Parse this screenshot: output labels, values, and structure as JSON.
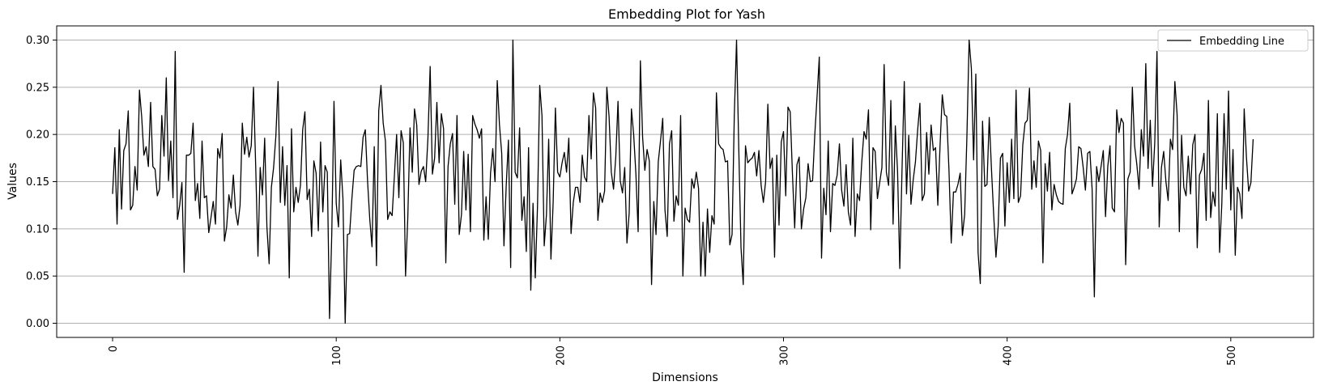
{
  "chart_data": {
    "type": "line",
    "title": "Embedding Plot for Yash",
    "xlabel": "Dimensions",
    "ylabel": "Values",
    "xlim": [
      -25,
      537
    ],
    "ylim": [
      -0.015,
      0.315
    ],
    "xticks": [
      0,
      100,
      200,
      300,
      400,
      500
    ],
    "xtick_labels": [
      "0",
      "100",
      "200",
      "300",
      "400",
      "500"
    ],
    "yticks": [
      0.0,
      0.05,
      0.1,
      0.15,
      0.2,
      0.25,
      0.3
    ],
    "ytick_labels": [
      "0.00",
      "0.05",
      "0.10",
      "0.15",
      "0.20",
      "0.25",
      "0.30"
    ],
    "grid": "horizontal",
    "legend_position": "top-right",
    "line_color": "#000000",
    "series": [
      {
        "name": "Embedding Line",
        "x_start": 0,
        "x_step": 1,
        "values": [
          0.137,
          0.186,
          0.105,
          0.205,
          0.121,
          0.183,
          0.19,
          0.225,
          0.12,
          0.125,
          0.166,
          0.141,
          0.247,
          0.219,
          0.178,
          0.187,
          0.166,
          0.234,
          0.166,
          0.163,
          0.135,
          0.142,
          0.22,
          0.177,
          0.26,
          0.151,
          0.193,
          0.133,
          0.288,
          0.11,
          0.125,
          0.149,
          0.054,
          0.178,
          0.178,
          0.18,
          0.212,
          0.13,
          0.148,
          0.111,
          0.193,
          0.133,
          0.135,
          0.096,
          0.112,
          0.129,
          0.105,
          0.185,
          0.175,
          0.201,
          0.087,
          0.102,
          0.136,
          0.122,
          0.157,
          0.118,
          0.104,
          0.125,
          0.212,
          0.179,
          0.197,
          0.176,
          0.188,
          0.25,
          0.165,
          0.071,
          0.165,
          0.136,
          0.196,
          0.102,
          0.063,
          0.144,
          0.165,
          0.198,
          0.256,
          0.128,
          0.187,
          0.125,
          0.167,
          0.048,
          0.206,
          0.118,
          0.144,
          0.128,
          0.146,
          0.205,
          0.224,
          0.131,
          0.142,
          0.092,
          0.172,
          0.159,
          0.098,
          0.192,
          0.118,
          0.167,
          0.16,
          0.005,
          0.094,
          0.235,
          0.127,
          0.102,
          0.173,
          0.132,
          0.0,
          0.094,
          0.095,
          0.132,
          0.162,
          0.166,
          0.167,
          0.166,
          0.197,
          0.205,
          0.151,
          0.11,
          0.081,
          0.187,
          0.061,
          0.225,
          0.252,
          0.212,
          0.193,
          0.11,
          0.118,
          0.114,
          0.156,
          0.2,
          0.133,
          0.204,
          0.191,
          0.05,
          0.112,
          0.207,
          0.16,
          0.227,
          0.21,
          0.147,
          0.161,
          0.166,
          0.15,
          0.196,
          0.272,
          0.158,
          0.175,
          0.234,
          0.17,
          0.222,
          0.206,
          0.064,
          0.166,
          0.19,
          0.201,
          0.126,
          0.22,
          0.094,
          0.115,
          0.182,
          0.12,
          0.179,
          0.097,
          0.22,
          0.211,
          0.205,
          0.196,
          0.206,
          0.088,
          0.134,
          0.089,
          0.159,
          0.185,
          0.15,
          0.257,
          0.21,
          0.18,
          0.082,
          0.145,
          0.194,
          0.059,
          0.3,
          0.16,
          0.154,
          0.207,
          0.109,
          0.134,
          0.076,
          0.186,
          0.035,
          0.127,
          0.048,
          0.124,
          0.252,
          0.22,
          0.082,
          0.115,
          0.195,
          0.068,
          0.128,
          0.228,
          0.16,
          0.155,
          0.17,
          0.181,
          0.16,
          0.196,
          0.095,
          0.128,
          0.144,
          0.144,
          0.128,
          0.178,
          0.155,
          0.15,
          0.22,
          0.174,
          0.244,
          0.228,
          0.109,
          0.138,
          0.128,
          0.14,
          0.25,
          0.219,
          0.16,
          0.142,
          0.176,
          0.235,
          0.151,
          0.138,
          0.165,
          0.085,
          0.117,
          0.227,
          0.2,
          0.158,
          0.097,
          0.278,
          0.197,
          0.162,
          0.184,
          0.172,
          0.041,
          0.129,
          0.094,
          0.171,
          0.193,
          0.217,
          0.12,
          0.092,
          0.19,
          0.204,
          0.108,
          0.135,
          0.125,
          0.22,
          0.05,
          0.122,
          0.11,
          0.107,
          0.153,
          0.143,
          0.16,
          0.143,
          0.05,
          0.107,
          0.05,
          0.121,
          0.075,
          0.114,
          0.105,
          0.244,
          0.19,
          0.186,
          0.184,
          0.171,
          0.172,
          0.083,
          0.094,
          0.22,
          0.3,
          0.185,
          0.08,
          0.041,
          0.188,
          0.17,
          0.173,
          0.175,
          0.181,
          0.156,
          0.183,
          0.146,
          0.128,
          0.15,
          0.232,
          0.164,
          0.175,
          0.07,
          0.178,
          0.104,
          0.192,
          0.203,
          0.135,
          0.229,
          0.224,
          0.158,
          0.101,
          0.168,
          0.176,
          0.1,
          0.121,
          0.133,
          0.169,
          0.15,
          0.151,
          0.2,
          0.24,
          0.282,
          0.069,
          0.143,
          0.115,
          0.193,
          0.097,
          0.148,
          0.146,
          0.157,
          0.19,
          0.141,
          0.124,
          0.168,
          0.118,
          0.104,
          0.196,
          0.092,
          0.137,
          0.13,
          0.171,
          0.203,
          0.195,
          0.226,
          0.099,
          0.186,
          0.182,
          0.132,
          0.149,
          0.165,
          0.274,
          0.16,
          0.146,
          0.236,
          0.105,
          0.209,
          0.161,
          0.058,
          0.163,
          0.256,
          0.137,
          0.199,
          0.126,
          0.152,
          0.171,
          0.205,
          0.233,
          0.13,
          0.137,
          0.202,
          0.158,
          0.21,
          0.183,
          0.186,
          0.125,
          0.188,
          0.242,
          0.221,
          0.219,
          0.162,
          0.085,
          0.139,
          0.139,
          0.147,
          0.159,
          0.093,
          0.115,
          0.197,
          0.3,
          0.27,
          0.173,
          0.264,
          0.075,
          0.042,
          0.214,
          0.145,
          0.147,
          0.218,
          0.163,
          0.114,
          0.07,
          0.103,
          0.175,
          0.18,
          0.103,
          0.17,
          0.128,
          0.195,
          0.132,
          0.247,
          0.128,
          0.135,
          0.189,
          0.212,
          0.215,
          0.249,
          0.142,
          0.172,
          0.144,
          0.193,
          0.183,
          0.064,
          0.169,
          0.14,
          0.181,
          0.12,
          0.147,
          0.136,
          0.129,
          0.127,
          0.126,
          0.185,
          0.2,
          0.233,
          0.137,
          0.144,
          0.153,
          0.187,
          0.185,
          0.165,
          0.141,
          0.18,
          0.182,
          0.142,
          0.028,
          0.166,
          0.15,
          0.166,
          0.183,
          0.113,
          0.166,
          0.188,
          0.122,
          0.118,
          0.226,
          0.202,
          0.217,
          0.212,
          0.062,
          0.153,
          0.16,
          0.25,
          0.188,
          0.168,
          0.142,
          0.205,
          0.177,
          0.275,
          0.164,
          0.215,
          0.145,
          0.191,
          0.288,
          0.102,
          0.165,
          0.182,
          0.15,
          0.13,
          0.195,
          0.184,
          0.256,
          0.221,
          0.097,
          0.199,
          0.144,
          0.135,
          0.177,
          0.137,
          0.189,
          0.2,
          0.08,
          0.157,
          0.163,
          0.18,
          0.109,
          0.236,
          0.112,
          0.139,
          0.124,
          0.222,
          0.075,
          0.127,
          0.222,
          0.142,
          0.246,
          0.12,
          0.184,
          0.072,
          0.144,
          0.137,
          0.111,
          0.227,
          0.176,
          0.14,
          0.149,
          0.195
        ]
      }
    ]
  }
}
